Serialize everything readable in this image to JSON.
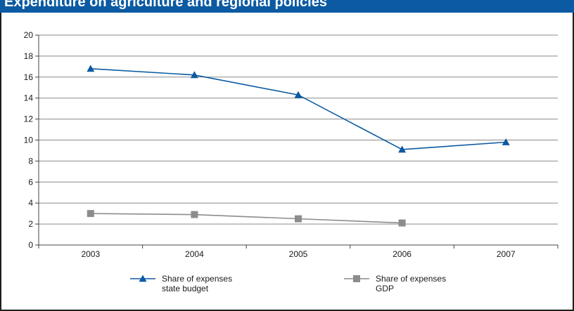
{
  "header": {
    "title": "Expenditure on agriculture and regional policies"
  },
  "chart_data": {
    "type": "line",
    "title": "",
    "xlabel": "",
    "ylabel": "",
    "categories": [
      "2003",
      "2004",
      "2005",
      "2006",
      "2007"
    ],
    "ylim": [
      0,
      20
    ],
    "yticks": [
      0,
      2,
      4,
      6,
      8,
      10,
      12,
      14,
      16,
      18,
      20
    ],
    "grid": true,
    "legend_position": "bottom",
    "series": [
      {
        "name_lines": [
          "Share of expenses",
          "state budget"
        ],
        "values": [
          16.8,
          16.2,
          14.3,
          9.1,
          9.8
        ],
        "color": "#0b5aa2",
        "marker": "triangle"
      },
      {
        "name_lines": [
          "Share of expenses",
          "GDP"
        ],
        "values": [
          3.0,
          2.9,
          2.5,
          2.1,
          null
        ],
        "color": "#8c8c8c",
        "marker": "square"
      }
    ]
  }
}
